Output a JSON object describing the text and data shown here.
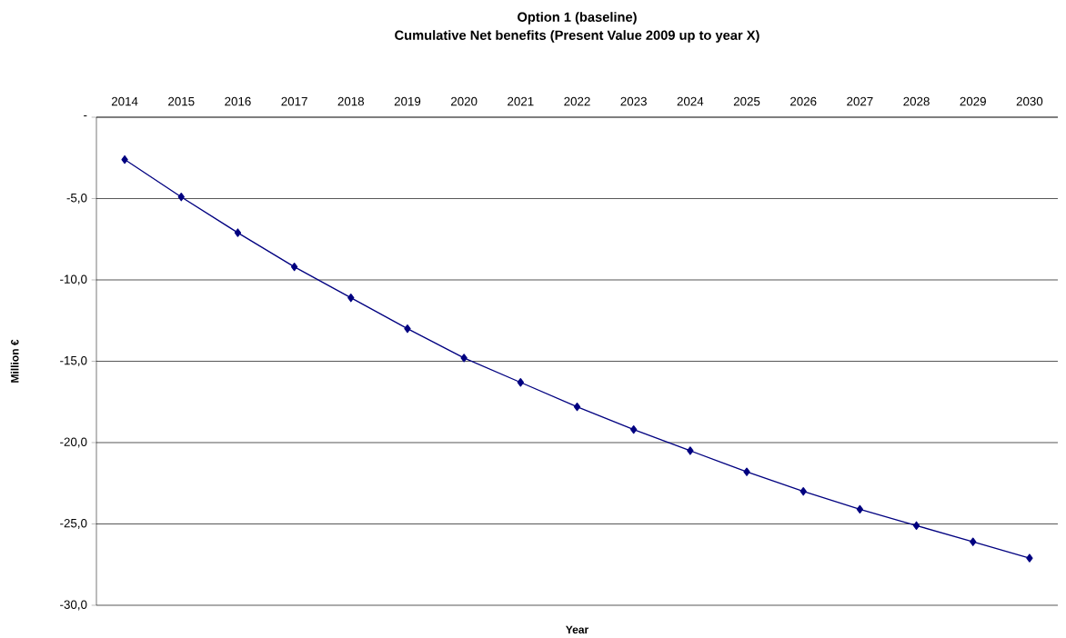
{
  "chart_data": {
    "type": "line",
    "title": "Option 1 (baseline)",
    "subtitle": "Cumulative Net benefits (Present Value 2009 up to year X)",
    "xlabel": "Year",
    "ylabel": "Million €",
    "categories": [
      "2014",
      "2015",
      "2016",
      "2017",
      "2018",
      "2019",
      "2020",
      "2021",
      "2022",
      "2023",
      "2024",
      "2025",
      "2026",
      "2027",
      "2028",
      "2029",
      "2030"
    ],
    "series": [
      {
        "color": "#000080",
        "values": [
          -2.6,
          -4.9,
          -7.1,
          -9.2,
          -11.1,
          -13.0,
          -14.8,
          -16.3,
          -17.8,
          -19.2,
          -20.5,
          -21.8,
          -23.0,
          -24.1,
          -25.1,
          -26.1,
          -27.1
        ]
      }
    ],
    "ylim": [
      -30,
      0
    ],
    "yticks": [
      {
        "value": 0,
        "label": "-"
      },
      {
        "value": -5,
        "label": "-5,0"
      },
      {
        "value": -10,
        "label": "-10,0"
      },
      {
        "value": -15,
        "label": "-15,0"
      },
      {
        "value": -20,
        "label": "-20,0"
      },
      {
        "value": -25,
        "label": "-25,0"
      },
      {
        "value": -30,
        "label": "-30,0"
      }
    ],
    "grid": "y",
    "marker": "diamond",
    "line_style": "solid"
  }
}
